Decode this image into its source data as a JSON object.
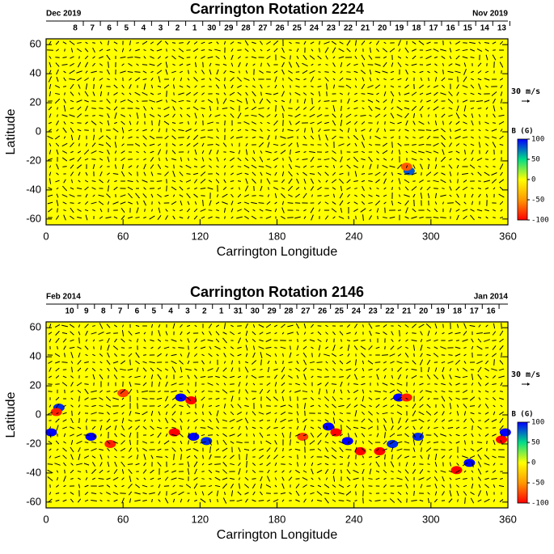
{
  "chart_data": [
    {
      "type": "vector_map",
      "title": "Carrington Rotation 2224",
      "xlabel": "Carrington Longitude",
      "ylabel": "Latitude",
      "date_left": "Dec 2019",
      "date_right": "Nov 2019",
      "xlim": [
        0,
        360
      ],
      "xticks": [
        0,
        60,
        120,
        180,
        240,
        300,
        360
      ],
      "ylim": [
        -64,
        64
      ],
      "yticks": [
        -60,
        -40,
        -20,
        0,
        20,
        40,
        60
      ],
      "day_ticks": [
        {
          "value": 22.7,
          "label": "8"
        },
        {
          "value": 36.0,
          "label": "7"
        },
        {
          "value": 49.3,
          "label": "6"
        },
        {
          "value": 62.6,
          "label": "5"
        },
        {
          "value": 75.9,
          "label": "4"
        },
        {
          "value": 89.2,
          "label": "3"
        },
        {
          "value": 102.5,
          "label": "2"
        },
        {
          "value": 115.8,
          "label": "1"
        },
        {
          "value": 129.1,
          "label": "30"
        },
        {
          "value": 142.4,
          "label": "29"
        },
        {
          "value": 155.7,
          "label": "28"
        },
        {
          "value": 169.0,
          "label": "27"
        },
        {
          "value": 182.3,
          "label": "26"
        },
        {
          "value": 195.6,
          "label": "25"
        },
        {
          "value": 208.9,
          "label": "24"
        },
        {
          "value": 222.2,
          "label": "23"
        },
        {
          "value": 235.5,
          "label": "22"
        },
        {
          "value": 248.8,
          "label": "21"
        },
        {
          "value": 262.1,
          "label": "20"
        },
        {
          "value": 275.4,
          "label": "19"
        },
        {
          "value": 288.7,
          "label": "18"
        },
        {
          "value": 302.0,
          "label": "17"
        },
        {
          "value": 315.3,
          "label": "16"
        },
        {
          "value": 328.6,
          "label": "15"
        },
        {
          "value": 341.9,
          "label": "14"
        },
        {
          "value": 355.2,
          "label": "13"
        }
      ],
      "background": "#ffff00",
      "arrow_color": "#000000",
      "reference_arrow": "30 m/s",
      "colorbar": {
        "label": "B (G)",
        "lim": [
          -100,
          100
        ],
        "ticks": [
          -100,
          -50,
          0,
          50,
          100
        ],
        "colors": [
          "#ff0000",
          "#ff9900",
          "#ffff00",
          "#00dd88",
          "#0000ff"
        ]
      },
      "patches": {
        "x": [
          283,
          281
        ],
        "y": [
          -27,
          -24
        ],
        "values": [
          80,
          -70
        ]
      }
    },
    {
      "type": "vector_map",
      "title": "Carrington Rotation 2146",
      "xlabel": "Carrington Longitude",
      "ylabel": "Latitude",
      "date_left": "Feb 2014",
      "date_right": "Jan 2014",
      "xlim": [
        0,
        360
      ],
      "xticks": [
        0,
        60,
        120,
        180,
        240,
        300,
        360
      ],
      "ylim": [
        -64,
        64
      ],
      "yticks": [
        -60,
        -40,
        -20,
        0,
        20,
        40,
        60
      ],
      "day_ticks": [
        {
          "value": 18.3,
          "label": "10"
        },
        {
          "value": 31.4,
          "label": "9"
        },
        {
          "value": 44.6,
          "label": "8"
        },
        {
          "value": 57.7,
          "label": "7"
        },
        {
          "value": 70.9,
          "label": "6"
        },
        {
          "value": 84.0,
          "label": "5"
        },
        {
          "value": 97.1,
          "label": "4"
        },
        {
          "value": 110.3,
          "label": "3"
        },
        {
          "value": 123.4,
          "label": "2"
        },
        {
          "value": 136.6,
          "label": "1"
        },
        {
          "value": 149.7,
          "label": "31"
        },
        {
          "value": 162.8,
          "label": "30"
        },
        {
          "value": 176.0,
          "label": "29"
        },
        {
          "value": 189.1,
          "label": "28"
        },
        {
          "value": 202.3,
          "label": "27"
        },
        {
          "value": 215.4,
          "label": "26"
        },
        {
          "value": 228.5,
          "label": "25"
        },
        {
          "value": 241.7,
          "label": "24"
        },
        {
          "value": 254.8,
          "label": "23"
        },
        {
          "value": 268.0,
          "label": "22"
        },
        {
          "value": 281.1,
          "label": "21"
        },
        {
          "value": 294.2,
          "label": "20"
        },
        {
          "value": 307.4,
          "label": "19"
        },
        {
          "value": 320.5,
          "label": "18"
        },
        {
          "value": 333.7,
          "label": "17"
        },
        {
          "value": 346.8,
          "label": "16"
        }
      ],
      "background": "#ffff00",
      "arrow_color": "#000000",
      "reference_arrow": "30 m/s",
      "colorbar": {
        "label": "B (G)",
        "lim": [
          -100,
          100
        ],
        "ticks": [
          -100,
          -50,
          0,
          50,
          100
        ],
        "colors": [
          "#ff0000",
          "#ff9900",
          "#ffff00",
          "#00dd88",
          "#0000ff"
        ]
      },
      "patches": {
        "x": [
          10,
          8,
          4,
          35,
          50,
          60,
          105,
          113,
          100,
          115,
          125,
          200,
          220,
          226,
          235,
          245,
          260,
          270,
          275,
          281,
          290,
          320,
          330,
          355,
          358
        ],
        "y": [
          5,
          2,
          -12,
          -15,
          -20,
          15,
          12,
          10,
          -12,
          -15,
          -18,
          -15,
          -8,
          -12,
          -18,
          -25,
          -25,
          -20,
          12,
          12,
          -15,
          -38,
          -33,
          -17,
          -12
        ],
        "values": [
          90,
          -90,
          100,
          100,
          -90,
          -80,
          100,
          -100,
          -100,
          100,
          90,
          -80,
          100,
          -100,
          100,
          -100,
          -100,
          90,
          100,
          -90,
          90,
          -100,
          100,
          -100,
          100
        ]
      }
    }
  ]
}
